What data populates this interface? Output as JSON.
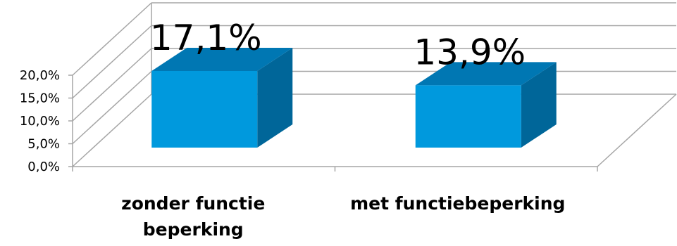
{
  "chart_data": {
    "type": "bar",
    "style": "3d-column",
    "categories": [
      [
        "zonder functie",
        "beperking"
      ],
      [
        "met functiebeperking"
      ]
    ],
    "values": [
      17.1,
      13.9
    ],
    "data_labels": [
      "17,1%",
      "13,9%"
    ],
    "yticks": [
      "0,0%",
      "5,0%",
      "10,0%",
      "15,0%",
      "20,0%"
    ],
    "ylim": [
      0,
      20
    ],
    "grid": true,
    "legend": "none",
    "colors": {
      "front": "#0099dd",
      "top": "#0077b3",
      "side": "#006699",
      "grid": "#a6a6a6"
    }
  }
}
